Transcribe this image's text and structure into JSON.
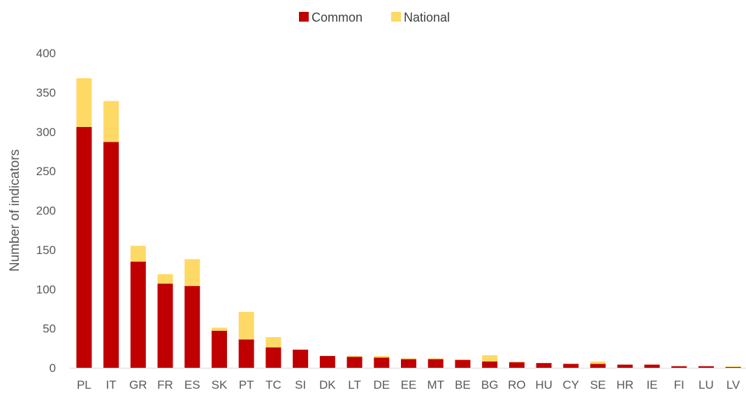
{
  "chart_data": {
    "type": "bar",
    "stacked": true,
    "categories": [
      "PL",
      "IT",
      "GR",
      "FR",
      "ES",
      "SK",
      "PT",
      "TC",
      "SI",
      "DK",
      "LT",
      "DE",
      "EE",
      "MT",
      "BE",
      "BG",
      "RO",
      "HU",
      "CY",
      "SE",
      "HR",
      "IE",
      "FI",
      "LU",
      "LV"
    ],
    "series": [
      {
        "name": "Common",
        "color": "#c00000",
        "values": [
          306,
          287,
          135,
          107,
          104,
          47,
          36,
          26,
          23,
          15,
          14,
          13,
          11,
          11,
          10,
          8,
          7,
          6,
          5,
          5,
          4,
          4,
          2,
          2,
          1
        ]
      },
      {
        "name": "National",
        "color": "#ffd966",
        "values": [
          62,
          52,
          20,
          12,
          34,
          4,
          35,
          13,
          0,
          0,
          1,
          2,
          1,
          1,
          1,
          8,
          1,
          0,
          0,
          3,
          0,
          0,
          0,
          0,
          1
        ]
      }
    ],
    "title": "",
    "xlabel": "",
    "ylabel": "Number of indicators",
    "ylim": [
      0,
      400
    ],
    "yticks": [
      0,
      50,
      100,
      150,
      200,
      250,
      300,
      350,
      400
    ],
    "grid": false,
    "legend_position": "top"
  }
}
